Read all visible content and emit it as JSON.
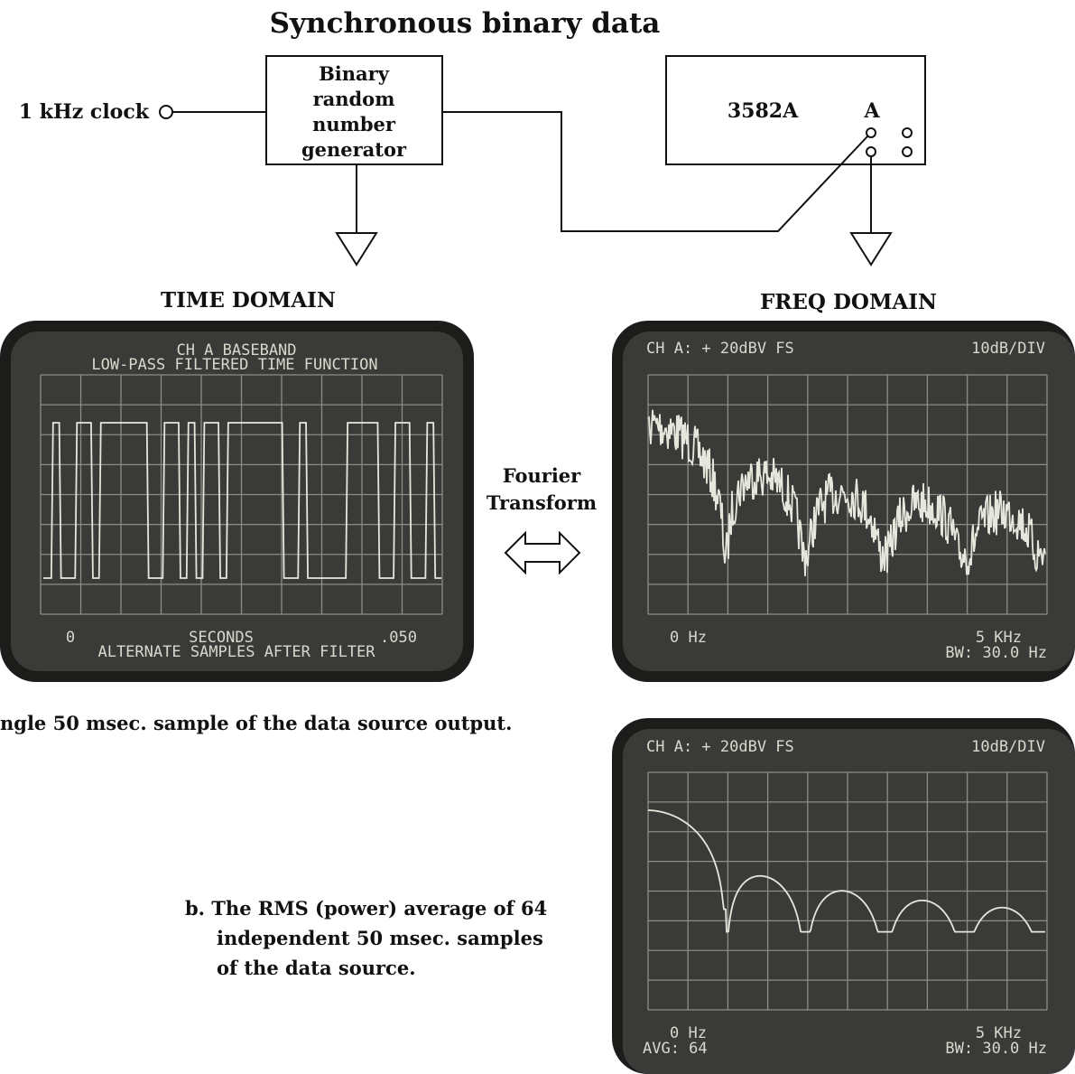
{
  "title": "Synchronous binary data",
  "clock_label": "1 kHz clock",
  "generator": {
    "lines": [
      "Binary",
      "random",
      "number",
      "generator"
    ]
  },
  "analyzer": {
    "model": "3582A",
    "channel": "A"
  },
  "time_domain": {
    "heading": "TIME DOMAIN",
    "screen": {
      "top_lines": [
        "CH A BASEBAND",
        "LOW-PASS FILTERED TIME FUNCTION"
      ],
      "x_start": "0",
      "x_unit": "SECONDS",
      "x_end": ".050",
      "bottom_line": "ALTERNATE SAMPLES AFTER FILTER"
    },
    "caption": "ngle 50 msec. sample of the data source output."
  },
  "transform": {
    "lines": [
      "Fourier",
      "Transform"
    ]
  },
  "freq_domain": {
    "heading": "FREQ DOMAIN",
    "screen_a": {
      "header_left": "CH A: + 20dBV  FS",
      "header_right": "10dB/DIV",
      "x_start": "0 Hz",
      "x_end": "5 KHz",
      "bandwidth": "BW: 30.0 Hz"
    },
    "screen_b": {
      "header_left": "CH A: + 20dBV  FS",
      "header_right": "10dB/DIV",
      "x_start": "0 Hz",
      "x_end": "5 KHz",
      "average": "AVG:  64",
      "bandwidth": "BW: 30.0 Hz"
    },
    "caption_b": {
      "lines": [
        "b. The RMS (power) average of 64",
        "independent 50 msec. samples",
        "of the data source."
      ]
    }
  }
}
